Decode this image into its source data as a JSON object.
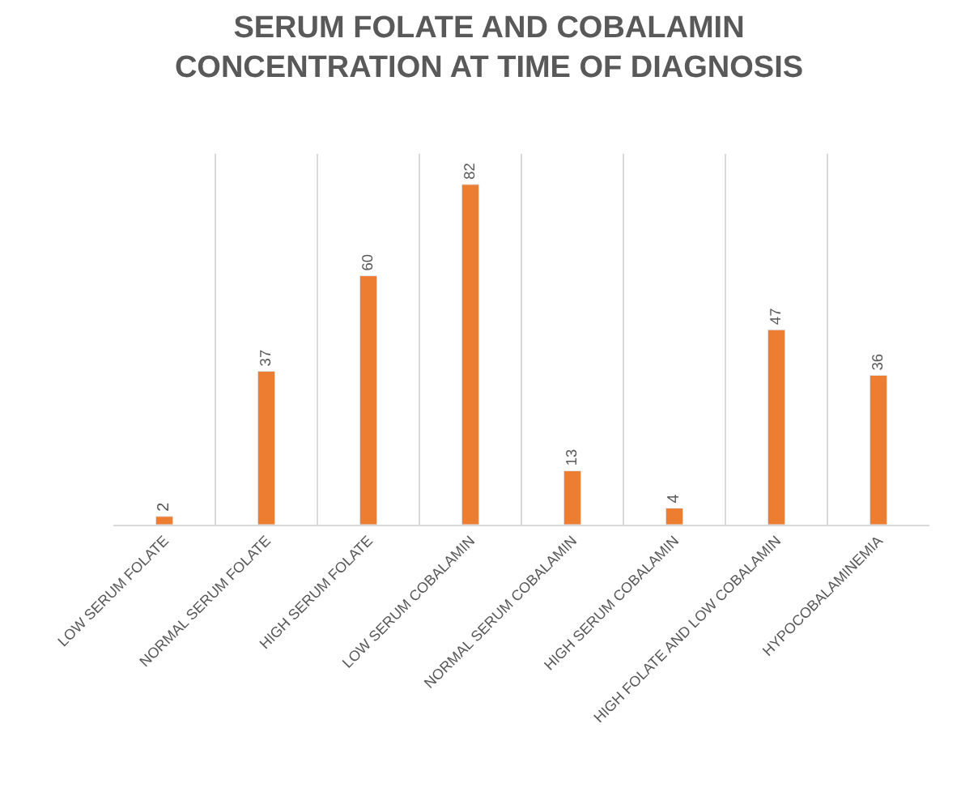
{
  "chart_data": {
    "type": "bar",
    "title": "SERUM FOLATE AND COBALAMIN\nCONCENTRATION AT TIME OF DIAGNOSIS",
    "categories": [
      "LOW SERUM FOLATE",
      "NORMAL SERUM FOLATE",
      "HIGH SERUM FOLATE",
      "LOW SERUM COBALAMIN",
      "NORMAL SERUM COBALAMIN",
      "HIGH SERUM COBALAMIN",
      "HIGH FOLATE AND LOW COBALAMIN",
      "HYPOCOBALAMINEMIA"
    ],
    "values": [
      2,
      37,
      60,
      82,
      13,
      4,
      47,
      36
    ],
    "color": "#ed7d31",
    "data_labels": true,
    "grid": "x"
  }
}
